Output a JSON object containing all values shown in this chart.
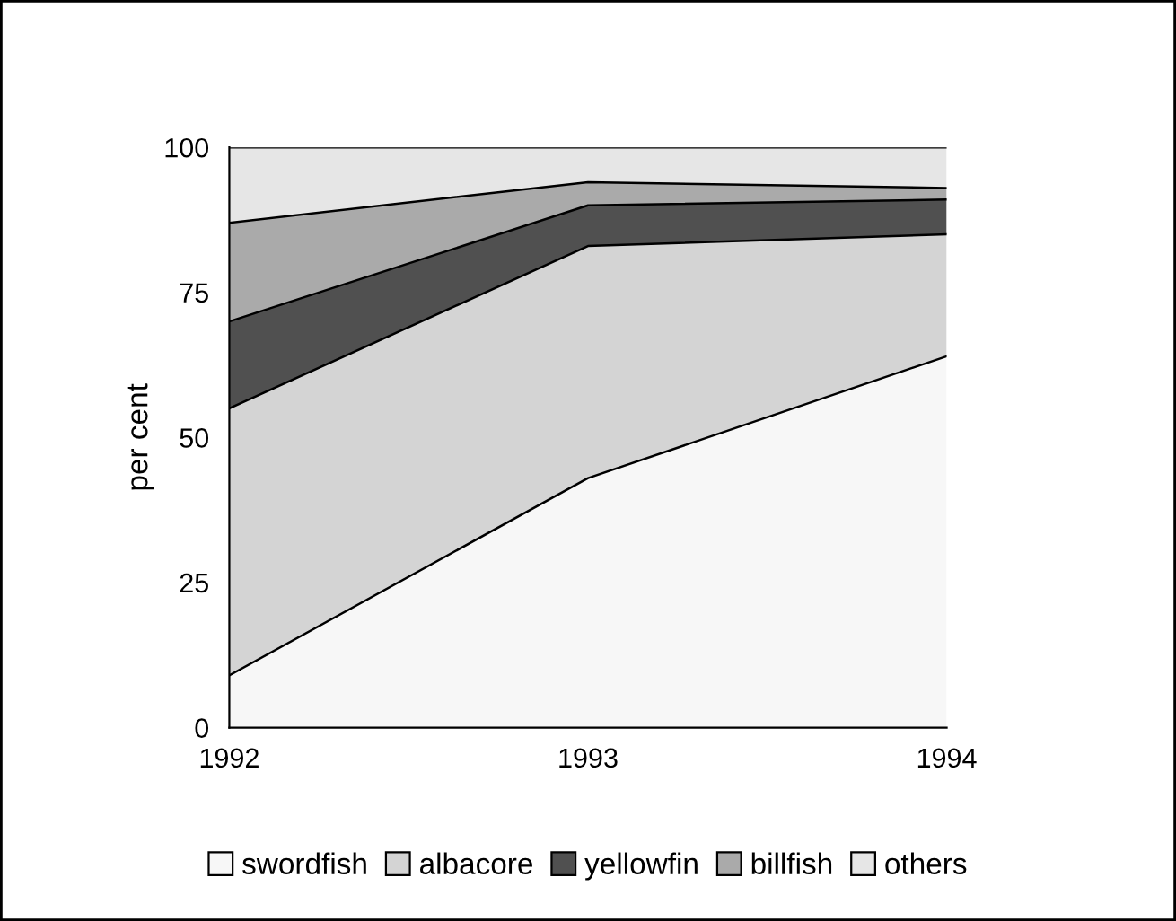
{
  "chart_data": {
    "type": "area",
    "stacked": true,
    "ylabel": "per cent",
    "x": [
      1992,
      1993,
      1994
    ],
    "xlim": [
      1992,
      1994
    ],
    "xticks": [
      1992,
      1993,
      1994
    ],
    "ylim": [
      0,
      100
    ],
    "yticks": [
      0,
      25,
      50,
      75,
      100
    ],
    "grid": false,
    "legend": "bottom",
    "series": [
      {
        "name": "swordfish",
        "color": "#f7f7f7",
        "values": [
          9,
          43,
          64
        ]
      },
      {
        "name": "albacore",
        "color": "#d4d4d4",
        "values": [
          46,
          40,
          21
        ]
      },
      {
        "name": "yellowfin",
        "color": "#505050",
        "values": [
          15,
          7,
          6
        ]
      },
      {
        "name": "billfish",
        "color": "#aaaaaa",
        "values": [
          17,
          4,
          2
        ]
      },
      {
        "name": "others",
        "color": "#e6e6e6",
        "values": [
          13,
          6,
          7
        ]
      }
    ]
  }
}
